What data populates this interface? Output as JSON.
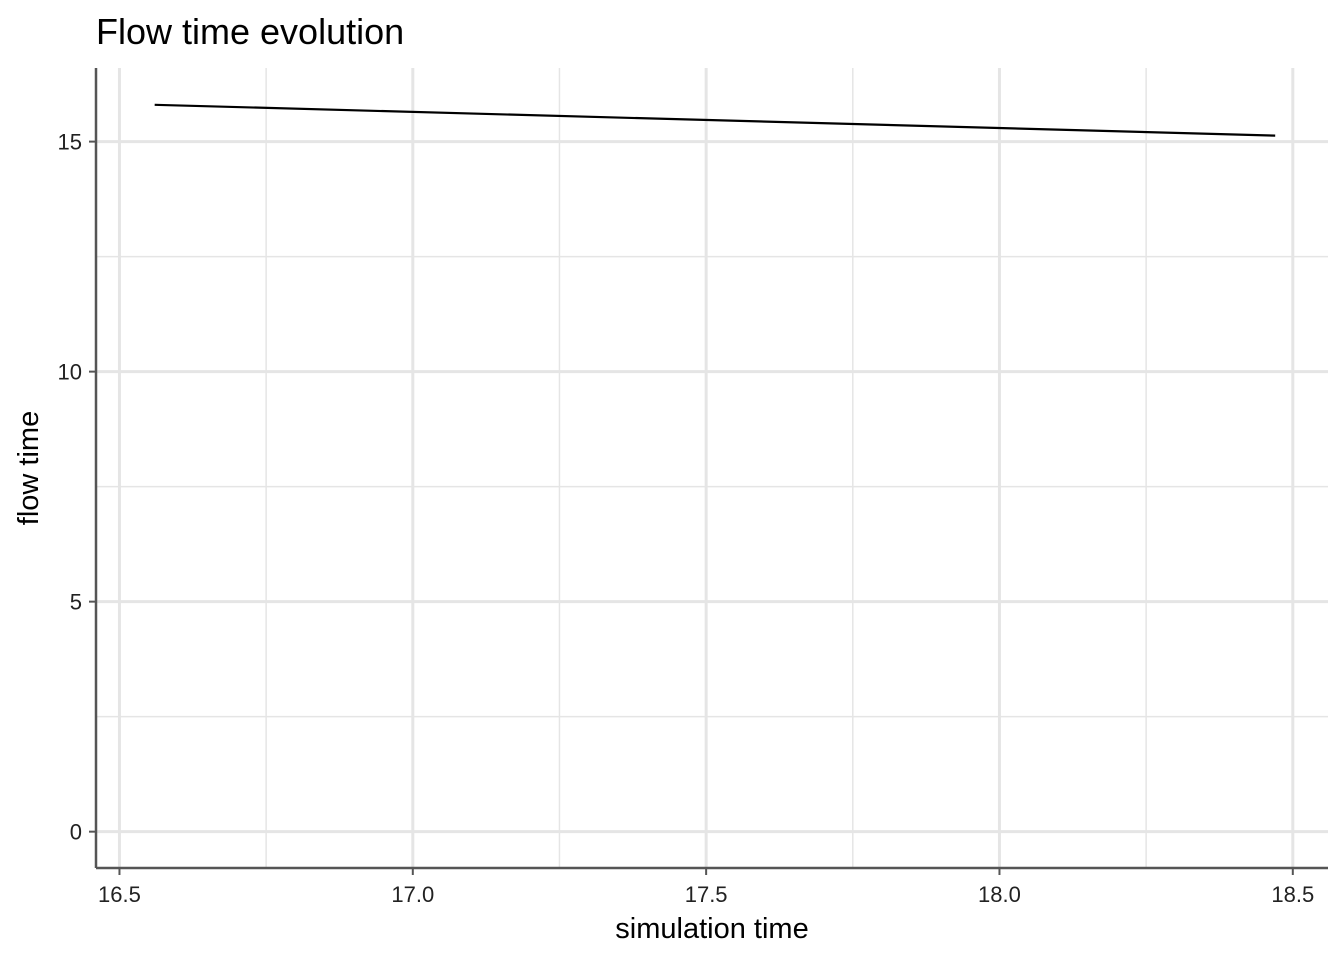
{
  "chart_data": {
    "type": "line",
    "title": "Flow time evolution",
    "xlabel": "simulation time",
    "ylabel": "flow time",
    "xlim": [
      16.46,
      18.56
    ],
    "ylim": [
      -0.79,
      16.6
    ],
    "x_ticks": [
      16.5,
      17.0,
      17.5,
      18.0,
      18.5
    ],
    "x_tick_labels": [
      "16.5",
      "17.0",
      "17.5",
      "18.0",
      "18.5"
    ],
    "x_minor_ticks": [
      16.75,
      17.25,
      17.75,
      18.25
    ],
    "y_ticks": [
      0,
      5,
      10,
      15
    ],
    "y_tick_labels": [
      "0",
      "5",
      "10",
      "15"
    ],
    "y_minor_ticks": [
      2.5,
      7.5,
      12.5
    ],
    "grid": true,
    "legend": "none",
    "line_color": "#000000",
    "grid_color": "#e5e5e5",
    "axis_color": "#555555",
    "series": [
      {
        "x": [
          16.56,
          18.47
        ],
        "y": [
          15.8,
          15.13
        ]
      }
    ]
  }
}
